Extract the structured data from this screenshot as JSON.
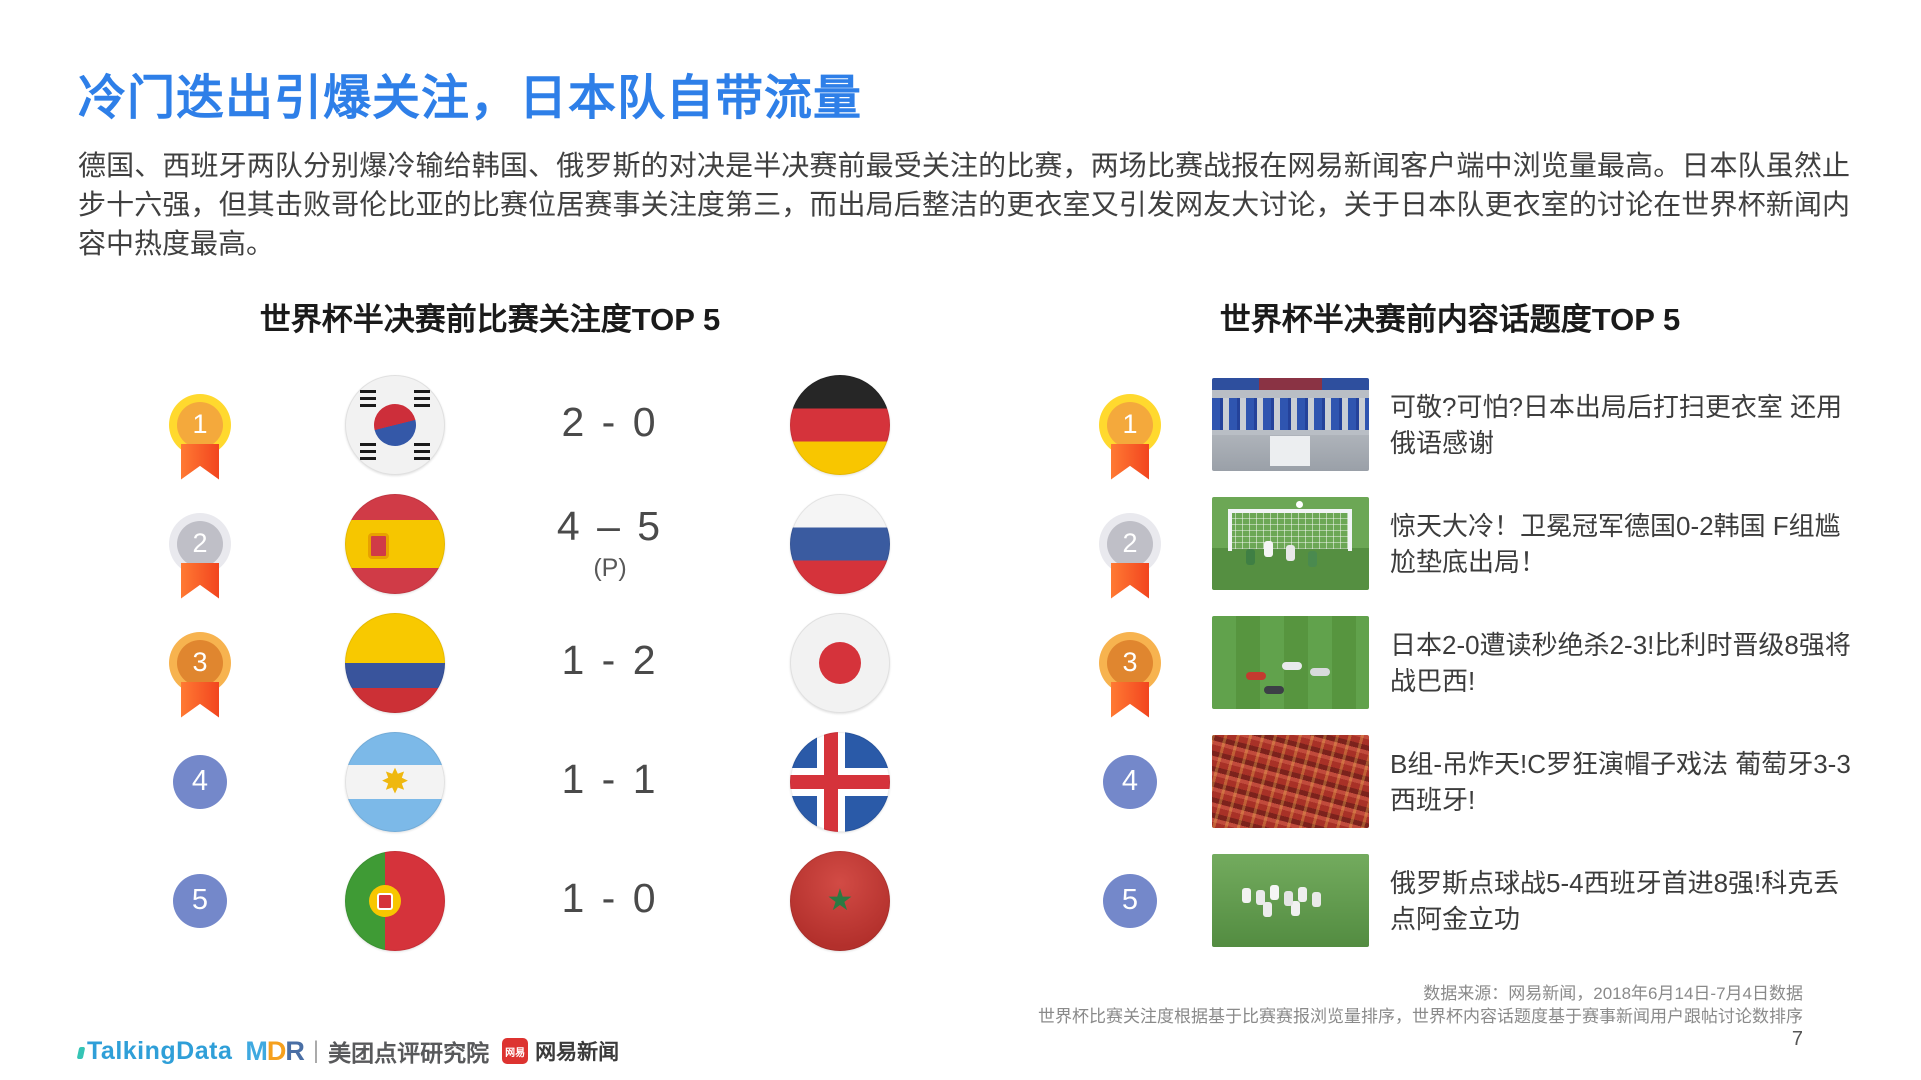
{
  "slide": {
    "title": "冷门迭出引爆关注，日本队自带流量",
    "intro": "德国、西班牙两队分别爆冷输给韩国、俄罗斯的对决是半决赛前最受关注的比赛，两场比赛战报在网易新闻客户端中浏览量最高。日本队虽然止步十六强，但其击败哥伦比亚的比赛位居赛事关注度第三，而出局后整洁的更衣室又引发网友大讨论，关于日本队更衣室的讨论在世界杯新闻内容中热度最高。",
    "page_number": "7"
  },
  "match_section": {
    "title": "世界杯半决赛前比赛关注度TOP 5",
    "rows": [
      {
        "rank": "1",
        "team_a": "south-korea",
        "score": "2 - 0",
        "score_note": "",
        "team_b": "germany"
      },
      {
        "rank": "2",
        "team_a": "spain",
        "score": "4 – 5",
        "score_note": "(P)",
        "team_b": "russia"
      },
      {
        "rank": "3",
        "team_a": "colombia",
        "score": "1 - 2",
        "score_note": "",
        "team_b": "japan"
      },
      {
        "rank": "4",
        "team_a": "argentina",
        "score": "1 - 1",
        "score_note": "",
        "team_b": "iceland"
      },
      {
        "rank": "5",
        "team_a": "portugal",
        "score": "1 - 0",
        "score_note": "",
        "team_b": "morocco"
      }
    ]
  },
  "topic_section": {
    "title": "世界杯半决赛前内容话题度TOP 5",
    "rows": [
      {
        "rank": "1",
        "thumbnail": "japan-locker-room",
        "headline": "可敬?可怕?日本出局后打扫更衣室 还用俄语感谢"
      },
      {
        "rank": "2",
        "thumbnail": "germany-korea-goal",
        "headline": "惊天大冷！卫冕冠军德国0-2韩国 F组尴尬垫底出局！"
      },
      {
        "rank": "3",
        "thumbnail": "japan-belgium-pitch",
        "headline": "日本2-0遭读秒绝杀2-3!比利时晋级8强将战巴西!"
      },
      {
        "rank": "4",
        "thumbnail": "portugal-spain-fans",
        "headline": "B组-吊炸天!C罗狂演帽子戏法 葡萄牙3-3西班牙!"
      },
      {
        "rank": "5",
        "thumbnail": "russia-spain-celebration",
        "headline": "俄罗斯点球战5-4西班牙首进8强!科克丢点阿金立功"
      }
    ]
  },
  "footer": {
    "source_line1": "数据来源：网易新闻，2018年6月14日-7月4日数据",
    "source_line2": "世界杯比赛关注度根据基于比赛赛报浏览量排序，世界杯内容话题度基于赛事新闻用户跟帖讨论数排序",
    "logos": {
      "talkingdata": "TalkingData",
      "mdr_m": "M",
      "mdr_d": "D",
      "mdr_r": "R",
      "divider": "|",
      "meituan": "美团点评研究院",
      "netease_badge": "网易",
      "netease": "网易新闻"
    }
  },
  "colors": {
    "title_blue": "#2E7FE8",
    "gold_ring": "#FFD92E",
    "gold_fill": "#F4A93C",
    "silver_ring": "#E9E9EE",
    "silver_fill": "#BFBFC7",
    "bronze_ring": "#F7B34F",
    "bronze_fill": "#E0862F",
    "ribbon_orange": "#FF5C2B",
    "rank_blue": "#7488CA",
    "talkingdata_blue": "#2F9FD8",
    "netease_red": "#DD3330"
  }
}
